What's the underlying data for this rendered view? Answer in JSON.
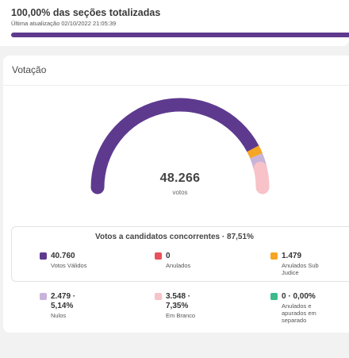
{
  "header": {
    "title": "100,00% das seções totalizadas",
    "updated": "Última atualização 02/10/2022 21:05:39",
    "progress": 1.0,
    "progress_color": "#5e3a8f"
  },
  "voting": {
    "title": "Votação",
    "total": "48.266",
    "total_label": "votos",
    "gauge_segments": [
      {
        "name": "Votos Válidos",
        "value": 40760,
        "color": "#5e3a8f"
      },
      {
        "name": "Anulados",
        "value": 0,
        "color": "#e8505b"
      },
      {
        "name": "Anulados Sub Judice",
        "value": 1479,
        "color": "#f5a623"
      },
      {
        "name": "Nulos",
        "value": 2479,
        "color": "#c8b3d9"
      },
      {
        "name": "Em Branco",
        "value": 3548,
        "color": "#f7c3c8"
      },
      {
        "name": "Anulados e apurados em separado",
        "value": 0,
        "color": "#3bba8c"
      }
    ]
  },
  "candidates_box": {
    "title": "Votos a candidatos concorrentes · 87,51%",
    "items": [
      {
        "value": "40.760",
        "label": "Votos Válidos",
        "color": "#5e3a8f"
      },
      {
        "value": "0",
        "label": "Anulados",
        "color": "#e8505b"
      },
      {
        "value": "1.479",
        "label_line1": "Anulados Sub",
        "label_line2": "Judice",
        "color": "#f5a623"
      }
    ]
  },
  "others": {
    "items": [
      {
        "value_line1": "2.479 ·",
        "value_line2": "5,14%",
        "label": "Nulos",
        "color": "#c8b3d9"
      },
      {
        "value_line1": "3.548 ·",
        "value_line2": "7,35%",
        "label": "Em Branco",
        "color": "#f7c3c8"
      },
      {
        "value": "0 · 0,00%",
        "label_line1": "Anulados e",
        "label_line2": "apurados em",
        "label_line3": "separado",
        "color": "#3bba8c"
      }
    ]
  }
}
